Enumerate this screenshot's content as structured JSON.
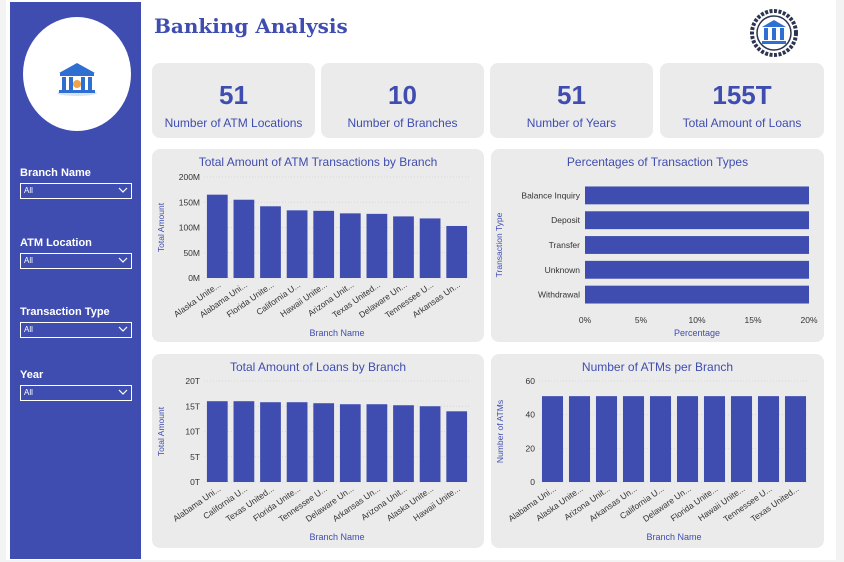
{
  "header": {
    "title": "Banking Analysis"
  },
  "sidebar": {
    "filters": [
      {
        "label": "Branch Name",
        "value": "All"
      },
      {
        "label": "ATM Location",
        "value": "All"
      },
      {
        "label": "Transaction Type",
        "value": "All"
      },
      {
        "label": "Year",
        "value": "All"
      }
    ]
  },
  "kpis": [
    {
      "value": "51",
      "label": "Number of ATM Locations"
    },
    {
      "value": "10",
      "label": "Number of Branches"
    },
    {
      "value": "51",
      "label": "Number of Years"
    },
    {
      "value": "155T",
      "label": "Total Amount of Loans"
    }
  ],
  "colors": {
    "accent": "#3f4db0",
    "panel": "#ebebeb",
    "bar": "#3f4db0"
  },
  "chart_data": [
    {
      "type": "bar",
      "title": "Total Amount of ATM Transactions by Branch",
      "xlabel": "Branch Name",
      "ylabel": "Total Amount",
      "categories": [
        "Alaska Unite...",
        "Alabama Uni...",
        "Florida Unite...",
        "California U...",
        "Hawaii Unite...",
        "Arizona Unit...",
        "Texas United...",
        "Delaware Un...",
        "Tennessee U...",
        "Arkansas Un..."
      ],
      "values": [
        165,
        155,
        142,
        134,
        133,
        128,
        127,
        122,
        118,
        103
      ],
      "ylim": [
        0,
        200
      ],
      "yticks": [
        "0M",
        "50M",
        "100M",
        "150M",
        "200M"
      ]
    },
    {
      "type": "bar",
      "orientation": "horizontal",
      "title": "Percentages of Transaction Types",
      "xlabel": "Percentage",
      "ylabel": "Transaction Type",
      "categories": [
        "Balance Inquiry",
        "Deposit",
        "Transfer",
        "Unknown",
        "Withdrawal"
      ],
      "values": [
        20,
        20,
        20,
        20,
        20
      ],
      "xlim": [
        0,
        20
      ],
      "xticks": [
        "0%",
        "5%",
        "10%",
        "15%",
        "20%"
      ]
    },
    {
      "type": "bar",
      "title": "Total Amount of Loans by Branch",
      "xlabel": "Branch Name",
      "ylabel": "Total Amount",
      "categories": [
        "Alabama Uni...",
        "California U...",
        "Texas United...",
        "Florida Unite...",
        "Tennessee U...",
        "Delaware Un...",
        "Arkansas Un...",
        "Arizona Unit...",
        "Alaska Unite...",
        "Hawaii Unite..."
      ],
      "values": [
        16.0,
        16.0,
        15.8,
        15.8,
        15.6,
        15.4,
        15.4,
        15.2,
        15.0,
        14.0
      ],
      "ylim": [
        0,
        20
      ],
      "yticks": [
        "0T",
        "5T",
        "10T",
        "15T",
        "20T"
      ]
    },
    {
      "type": "bar",
      "title": "Number of ATMs per Branch",
      "xlabel": "Branch Name",
      "ylabel": "Number of ATMs",
      "categories": [
        "Alabama Uni...",
        "Alaska Unite...",
        "Arizona Unit...",
        "Arkansas Un...",
        "California U...",
        "Delaware Un...",
        "Florida Unite...",
        "Hawaii Unite...",
        "Tennessee U...",
        "Texas United..."
      ],
      "values": [
        51,
        51,
        51,
        51,
        51,
        51,
        51,
        51,
        51,
        51
      ],
      "ylim": [
        0,
        60
      ],
      "yticks": [
        "0",
        "20",
        "40",
        "60"
      ]
    }
  ]
}
